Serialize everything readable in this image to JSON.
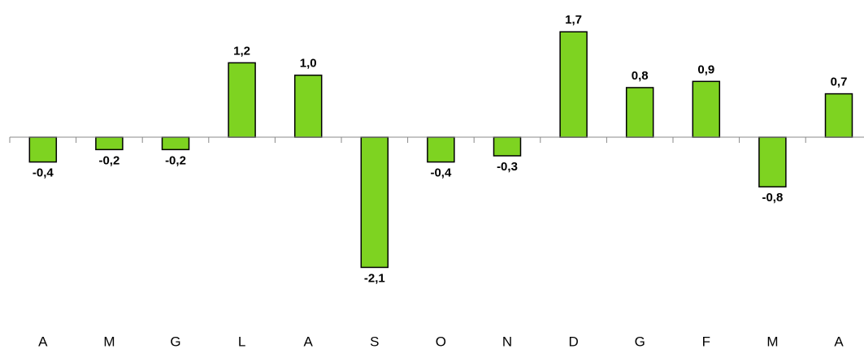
{
  "chart_data": {
    "type": "bar",
    "categories": [
      "A",
      "M",
      "G",
      "L",
      "A",
      "S",
      "O",
      "N",
      "D",
      "G",
      "F",
      "M",
      "A"
    ],
    "values": [
      -0.4,
      -0.2,
      -0.2,
      1.2,
      1.0,
      -2.1,
      -0.4,
      -0.3,
      1.7,
      0.8,
      0.9,
      -0.8,
      0.7
    ],
    "value_labels": [
      "-0,4",
      "-0,2",
      "-0,2",
      "1,2",
      "1,0",
      "-2,1",
      "-0,4",
      "-0,3",
      "1,7",
      "0,8",
      "0,9",
      "-0,8",
      "0,7"
    ],
    "color": "#7ed321",
    "ylim": [
      -2.5,
      2.2
    ]
  }
}
